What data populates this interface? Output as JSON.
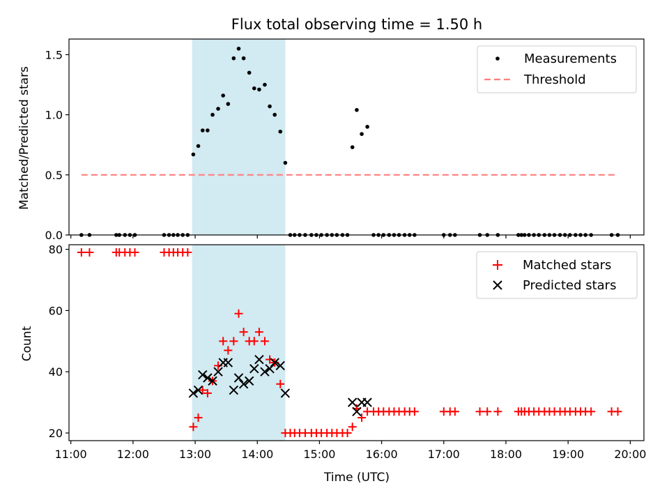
{
  "figure": {
    "title": "Flux total observing time = 1.50 h"
  },
  "colors": {
    "shade": "#add8e6",
    "measurement": "#000000",
    "threshold": "#ff7f7f",
    "matched": "#ff0000",
    "predicted": "#000000"
  },
  "chart_data": [
    {
      "type": "scatter",
      "title": "Flux total observing time = 1.50 h",
      "xlabel": "",
      "ylabel": "Matched/Predicted stars",
      "x_unit": "hours (UTC)",
      "xlim": [
        10.97,
        20.22
      ],
      "ylim": [
        0,
        1.63
      ],
      "yticks": [
        0.0,
        0.5,
        1.0,
        1.5
      ],
      "ytick_labels": [
        "0.0",
        "0.5",
        "1.0",
        "1.5"
      ],
      "shaded_interval": [
        12.95,
        14.45
      ],
      "legend": {
        "placement": "top-right",
        "entries": [
          "Measurements",
          "Threshold"
        ]
      },
      "threshold": {
        "name": "Threshold",
        "y": 0.5,
        "x_range": [
          11.17,
          19.8
        ]
      },
      "series": [
        {
          "name": "Measurements",
          "x": [
            11.17,
            11.3,
            11.73,
            11.78,
            11.87,
            11.95,
            12.03,
            12.5,
            12.58,
            12.65,
            12.72,
            12.8,
            12.88,
            12.97,
            13.05,
            13.12,
            13.2,
            13.28,
            13.37,
            13.45,
            13.53,
            13.62,
            13.7,
            13.78,
            13.87,
            13.95,
            14.03,
            14.12,
            14.2,
            14.28,
            14.37,
            14.45,
            14.53,
            14.6,
            14.68,
            14.77,
            14.87,
            14.95,
            15.03,
            15.12,
            15.2,
            15.28,
            15.37,
            15.45,
            15.53,
            15.6,
            15.68,
            15.77,
            15.87,
            15.95,
            16.03,
            16.12,
            16.2,
            16.28,
            16.37,
            16.45,
            16.53,
            17.0,
            17.1,
            17.18,
            17.58,
            17.7,
            17.87,
            18.2,
            18.25,
            18.3,
            18.37,
            18.45,
            18.53,
            18.62,
            18.7,
            18.78,
            18.87,
            18.95,
            19.03,
            19.12,
            19.2,
            19.28,
            19.37,
            19.7,
            19.8
          ],
          "y": [
            0,
            0,
            0,
            0,
            0,
            0,
            0,
            0,
            0,
            0,
            0,
            0,
            0,
            0.67,
            0.74,
            0.87,
            0.87,
            1.0,
            1.05,
            1.16,
            1.09,
            1.47,
            1.55,
            1.47,
            1.35,
            1.22,
            1.21,
            1.25,
            1.07,
            1.0,
            0.86,
            0.6,
            0,
            0,
            0,
            0,
            0,
            0,
            0,
            0,
            0,
            0,
            0,
            0,
            0.73,
            1.04,
            0.84,
            0.9,
            0,
            0,
            0,
            0,
            0,
            0,
            0,
            0,
            0,
            0,
            0,
            0,
            0,
            0,
            0,
            0,
            0,
            0,
            0,
            0,
            0,
            0,
            0,
            0,
            0,
            0,
            0,
            0,
            0,
            0,
            0,
            0,
            0
          ]
        }
      ]
    },
    {
      "type": "scatter",
      "title": "",
      "xlabel": "Time (UTC)",
      "ylabel": "Count",
      "x_unit": "hours (UTC)",
      "xlim": [
        10.97,
        20.22
      ],
      "ylim": [
        17.5,
        81.5
      ],
      "xticks": [
        11,
        12,
        13,
        14,
        15,
        16,
        17,
        18,
        19,
        20
      ],
      "xtick_labels": [
        "11:00",
        "12:00",
        "13:00",
        "14:00",
        "15:00",
        "16:00",
        "17:00",
        "18:00",
        "19:00",
        "20:00"
      ],
      "yticks": [
        20,
        40,
        60,
        80
      ],
      "ytick_labels": [
        "20",
        "40",
        "60",
        "80"
      ],
      "shaded_interval": [
        12.95,
        14.45
      ],
      "legend": {
        "placement": "top-right",
        "entries": [
          "Matched stars",
          "Predicted stars"
        ]
      },
      "series": [
        {
          "name": "Matched stars",
          "marker": "+",
          "x": [
            11.17,
            11.3,
            11.73,
            11.78,
            11.87,
            11.95,
            12.03,
            12.5,
            12.58,
            12.65,
            12.72,
            12.8,
            12.88,
            12.97,
            13.05,
            13.12,
            13.2,
            13.28,
            13.37,
            13.45,
            13.53,
            13.62,
            13.7,
            13.78,
            13.87,
            13.95,
            14.03,
            14.12,
            14.2,
            14.28,
            14.37,
            14.45,
            14.53,
            14.6,
            14.68,
            14.77,
            14.87,
            14.95,
            15.03,
            15.12,
            15.2,
            15.28,
            15.37,
            15.45,
            15.53,
            15.6,
            15.68,
            15.77,
            15.87,
            15.95,
            16.03,
            16.12,
            16.2,
            16.28,
            16.37,
            16.45,
            16.53,
            17.0,
            17.1,
            17.18,
            17.58,
            17.7,
            17.87,
            18.2,
            18.25,
            18.3,
            18.37,
            18.45,
            18.53,
            18.62,
            18.7,
            18.78,
            18.87,
            18.95,
            19.03,
            19.12,
            19.2,
            19.28,
            19.37,
            19.7,
            19.8
          ],
          "y": [
            79,
            79,
            79,
            79,
            79,
            79,
            79,
            79,
            79,
            79,
            79,
            79,
            79,
            22,
            25,
            34,
            33,
            37,
            42,
            50,
            47,
            50,
            59,
            53,
            50,
            50,
            53,
            50,
            44,
            43,
            36,
            20,
            20,
            20,
            20,
            20,
            20,
            20,
            20,
            20,
            20,
            20,
            20,
            20,
            22,
            28,
            25,
            27,
            27,
            27,
            27,
            27,
            27,
            27,
            27,
            27,
            27,
            27,
            27,
            27,
            27,
            27,
            27,
            27,
            27,
            27,
            27,
            27,
            27,
            27,
            27,
            27,
            27,
            27,
            27,
            27,
            27,
            27,
            27,
            27,
            27
          ]
        },
        {
          "name": "Predicted stars",
          "marker": "x",
          "x": [
            12.97,
            13.05,
            13.12,
            13.2,
            13.28,
            13.37,
            13.45,
            13.53,
            13.62,
            13.7,
            13.78,
            13.87,
            13.95,
            14.03,
            14.12,
            14.2,
            14.28,
            14.37,
            14.45,
            15.53,
            15.6,
            15.68,
            15.77
          ],
          "y": [
            33,
            34,
            39,
            38,
            37,
            40,
            43,
            43,
            34,
            38,
            36,
            37,
            41,
            44,
            40,
            41,
            43,
            42,
            33,
            30,
            27,
            30,
            30
          ]
        }
      ]
    }
  ]
}
